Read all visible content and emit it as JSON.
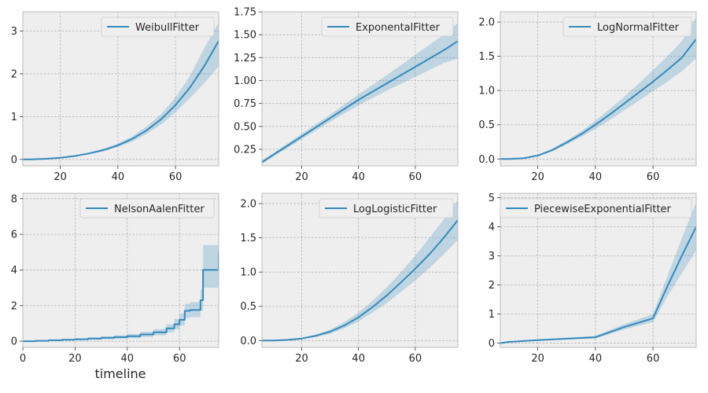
{
  "figure": {
    "xlabel": "timeline"
  },
  "colors": {
    "line": "#348abd",
    "band": "#348abd",
    "axes_bg": "#eeeeee",
    "grid": "#b2b2b2",
    "spine": "#bcbcbc"
  },
  "chart_data": [
    {
      "type": "line",
      "title": "",
      "legend": "WeibullFitter",
      "legend_loc": "top-right",
      "grid": true,
      "xlim": [
        7,
        75
      ],
      "ylim": [
        -0.15,
        3.45
      ],
      "xticks": [
        20,
        40,
        60
      ],
      "xtick_labels": [
        "20",
        "40",
        "60"
      ],
      "yticks": [
        0,
        1,
        2,
        3
      ],
      "ytick_labels": [
        "0",
        "1",
        "2",
        "3"
      ],
      "series": [
        {
          "x": [
            7,
            10,
            15,
            20,
            25,
            30,
            35,
            40,
            45,
            50,
            55,
            60,
            65,
            70,
            75
          ],
          "y": [
            0.0,
            0.003,
            0.015,
            0.04,
            0.08,
            0.14,
            0.22,
            0.33,
            0.48,
            0.68,
            0.94,
            1.27,
            1.68,
            2.18,
            2.77
          ],
          "lower": [
            0.0,
            0.001,
            0.01,
            0.03,
            0.065,
            0.12,
            0.19,
            0.29,
            0.42,
            0.6,
            0.82,
            1.1,
            1.43,
            1.78,
            2.18
          ],
          "upper": [
            0.0,
            0.005,
            0.02,
            0.05,
            0.095,
            0.16,
            0.25,
            0.37,
            0.54,
            0.77,
            1.06,
            1.45,
            1.95,
            2.6,
            3.2
          ]
        }
      ]
    },
    {
      "type": "line",
      "title": "",
      "legend": "ExponentalFitter",
      "legend_loc": "top-right",
      "grid": true,
      "xlim": [
        6,
        75
      ],
      "ylim": [
        0.07,
        1.75
      ],
      "xticks": [
        20,
        40,
        60
      ],
      "xtick_labels": [
        "20",
        "40",
        "60"
      ],
      "yticks": [
        0.25,
        0.5,
        0.75,
        1.0,
        1.25,
        1.5,
        1.75
      ],
      "ytick_labels": [
        "0.25",
        "0.50",
        "0.75",
        "1.00",
        "1.25",
        "1.50",
        "1.75"
      ],
      "series": [
        {
          "x": [
            6,
            10,
            20,
            30,
            40,
            50,
            60,
            70,
            75
          ],
          "y": [
            0.11,
            0.19,
            0.39,
            0.59,
            0.79,
            0.97,
            1.15,
            1.33,
            1.43
          ],
          "lower": [
            0.09,
            0.17,
            0.36,
            0.55,
            0.73,
            0.89,
            1.04,
            1.19,
            1.24
          ],
          "upper": [
            0.13,
            0.21,
            0.42,
            0.63,
            0.85,
            1.06,
            1.28,
            1.5,
            1.63
          ]
        }
      ]
    },
    {
      "type": "line",
      "title": "",
      "legend": "LogNormalFitter",
      "legend_loc": "top-right",
      "grid": true,
      "xlim": [
        7,
        75
      ],
      "ylim": [
        -0.1,
        2.15
      ],
      "xticks": [
        20,
        40,
        60
      ],
      "xtick_labels": [
        "20",
        "40",
        "60"
      ],
      "yticks": [
        0,
        0.5,
        1.0,
        1.5,
        2.0
      ],
      "ytick_labels": [
        "0.0",
        "0.5",
        "1.0",
        "1.5",
        "2.0"
      ],
      "series": [
        {
          "x": [
            7,
            10,
            15,
            20,
            25,
            30,
            35,
            40,
            45,
            50,
            55,
            60,
            65,
            70,
            75
          ],
          "y": [
            0.0,
            0.0,
            0.01,
            0.05,
            0.13,
            0.24,
            0.36,
            0.5,
            0.65,
            0.81,
            0.97,
            1.13,
            1.3,
            1.48,
            1.75
          ],
          "lower": [
            0.0,
            0.0,
            0.005,
            0.04,
            0.11,
            0.21,
            0.32,
            0.44,
            0.57,
            0.71,
            0.85,
            0.99,
            1.13,
            1.28,
            1.47
          ],
          "upper": [
            0.0,
            0.0,
            0.015,
            0.06,
            0.15,
            0.27,
            0.4,
            0.56,
            0.73,
            0.91,
            1.1,
            1.3,
            1.5,
            1.72,
            2.07
          ]
        }
      ]
    },
    {
      "type": "line",
      "title": "",
      "legend": "NelsonAalenFitter",
      "legend_loc": "top-right",
      "grid": true,
      "step": true,
      "xlim": [
        0,
        75
      ],
      "ylim": [
        -0.35,
        8.3
      ],
      "xticks": [
        0,
        20,
        40,
        60
      ],
      "xtick_labels": [
        "0",
        "20",
        "40",
        "60"
      ],
      "yticks": [
        0,
        2,
        4,
        6,
        8
      ],
      "ytick_labels": [
        "0",
        "2",
        "4",
        "6",
        "8"
      ],
      "series": [
        {
          "x": [
            0,
            5,
            10,
            15,
            20,
            25,
            30,
            35,
            40,
            45,
            50,
            55,
            58,
            60,
            62,
            64,
            68,
            69,
            75
          ],
          "y": [
            0.0,
            0.02,
            0.05,
            0.08,
            0.11,
            0.15,
            0.19,
            0.23,
            0.28,
            0.38,
            0.5,
            0.72,
            0.95,
            1.2,
            1.7,
            1.75,
            2.3,
            4.0,
            5.0
          ],
          "lower": [
            0.0,
            0.0,
            0.02,
            0.04,
            0.06,
            0.08,
            0.11,
            0.13,
            0.17,
            0.24,
            0.33,
            0.5,
            0.68,
            0.88,
            1.3,
            1.35,
            1.7,
            3.0,
            3.0
          ],
          "upper": [
            0.0,
            0.04,
            0.08,
            0.12,
            0.16,
            0.22,
            0.27,
            0.33,
            0.4,
            0.53,
            0.68,
            0.95,
            1.25,
            1.55,
            2.1,
            2.2,
            2.9,
            5.4,
            5.4
          ]
        }
      ]
    },
    {
      "type": "line",
      "title": "",
      "legend": "LogLogisticFitter",
      "legend_loc": "top-right",
      "grid": true,
      "xlim": [
        6,
        75
      ],
      "ylim": [
        -0.1,
        2.15
      ],
      "xticks": [
        20,
        40,
        60
      ],
      "xtick_labels": [
        "20",
        "40",
        "60"
      ],
      "yticks": [
        0,
        0.5,
        1.0,
        1.5,
        2.0
      ],
      "ytick_labels": [
        "0.0",
        "0.5",
        "1.0",
        "1.5",
        "2.0"
      ],
      "series": [
        {
          "x": [
            6,
            10,
            15,
            20,
            25,
            30,
            35,
            40,
            45,
            50,
            55,
            60,
            65,
            70,
            75
          ],
          "y": [
            0.0,
            0.0,
            0.01,
            0.03,
            0.07,
            0.13,
            0.22,
            0.34,
            0.49,
            0.66,
            0.85,
            1.05,
            1.26,
            1.5,
            1.76
          ],
          "lower": [
            0.0,
            0.0,
            0.005,
            0.02,
            0.05,
            0.1,
            0.18,
            0.28,
            0.41,
            0.55,
            0.71,
            0.88,
            1.06,
            1.26,
            1.47
          ],
          "upper": [
            0.0,
            0.0,
            0.015,
            0.04,
            0.09,
            0.16,
            0.27,
            0.41,
            0.58,
            0.78,
            1.0,
            1.24,
            1.5,
            1.77,
            2.05
          ]
        }
      ]
    },
    {
      "type": "line",
      "title": "",
      "legend": "PiecewiseExponentialFitter",
      "legend_loc": "top-right",
      "grid": true,
      "xlim": [
        7,
        75
      ],
      "ylim": [
        -0.15,
        5.15
      ],
      "xticks": [
        20,
        40,
        60
      ],
      "xtick_labels": [
        "20",
        "40",
        "60"
      ],
      "yticks": [
        0,
        1,
        2,
        3,
        4,
        5
      ],
      "ytick_labels": [
        "0",
        "1",
        "2",
        "3",
        "4",
        "5"
      ],
      "series": [
        {
          "x": [
            7,
            10,
            20,
            30,
            40,
            50,
            60,
            65,
            70,
            75
          ],
          "y": [
            0.0,
            0.04,
            0.1,
            0.15,
            0.2,
            0.55,
            0.85,
            1.95,
            3.0,
            4.0
          ],
          "lower": [
            0.0,
            0.03,
            0.08,
            0.12,
            0.16,
            0.47,
            0.72,
            1.6,
            2.4,
            3.2
          ],
          "upper": [
            0.0,
            0.05,
            0.12,
            0.18,
            0.25,
            0.65,
            1.0,
            2.3,
            3.6,
            4.85
          ]
        }
      ]
    }
  ]
}
